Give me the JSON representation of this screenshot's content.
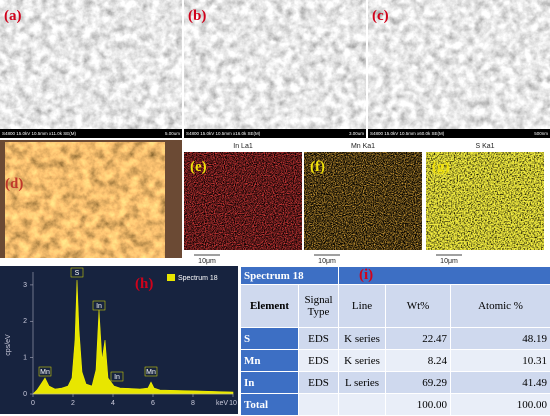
{
  "panels": [
    {
      "label": "(a)",
      "info": "S4800 15.0kV 10.5mm x11.0k SE(M)",
      "scale": "5.00um"
    },
    {
      "label": "(b)",
      "info": "S4800 15.0kV 10.5mm x16.0k SE(M)",
      "scale": "3.00um"
    },
    {
      "label": "(c)",
      "info": "S4800 15.0kV 10.5mm x60.0k SE(M)",
      "scale": "500nm"
    }
  ],
  "photo": {
    "label": "(d)"
  },
  "maps": [
    {
      "element": "In La1",
      "label": "(e)",
      "scale": "10μm"
    },
    {
      "element": "Mn Ka1",
      "label": "(f)",
      "scale": "10μm"
    },
    {
      "element": "S Ka1",
      "label": "(g)",
      "scale": "10μm"
    }
  ],
  "spectrum": {
    "label": "(h)",
    "legend": "Spectrum 18",
    "ylabel": "cps/eV",
    "xlabel": "keV",
    "xlim": [
      0,
      10
    ],
    "xticks": [
      0,
      2,
      4,
      6,
      8,
      10
    ],
    "ylim": [
      0,
      3.3
    ],
    "yticks": [
      0,
      1,
      2,
      3
    ],
    "peak_labels": [
      "S",
      "In",
      "Mn",
      "In",
      "Mn"
    ]
  },
  "table": {
    "title": "Spectrum 18",
    "label": "(i)",
    "headers": [
      "Element",
      "Signal Type",
      "Line",
      "Wt%",
      "Atomic %"
    ],
    "rows": [
      [
        "S",
        "EDS",
        "K series",
        "22.47",
        "48.19"
      ],
      [
        "Mn",
        "EDS",
        "K series",
        "8.24",
        "10.31"
      ],
      [
        "In",
        "EDS",
        "L series",
        "69.29",
        "41.49"
      ],
      [
        "Total",
        "",
        "",
        "100.00",
        "100.00"
      ]
    ]
  }
}
